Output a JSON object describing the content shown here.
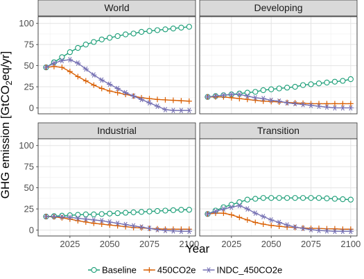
{
  "chart_data": {
    "type": "line",
    "xlabel": "Year",
    "ylabel": "GHG emission [GtCO2eq/yr]",
    "ylabel_main": "GHG emission [GtCO",
    "ylabel_sub": "2",
    "ylabel_tail": "eq/yr]",
    "xlim": [
      2005,
      2104
    ],
    "ylim": [
      -7,
      108
    ],
    "x_ticks": [
      2025,
      2050,
      2075,
      2100
    ],
    "y_ticks": [
      0,
      25,
      50,
      75,
      100
    ],
    "grid": true,
    "legend_position": "bottom",
    "x": [
      2010,
      2015,
      2020,
      2025,
      2030,
      2035,
      2040,
      2045,
      2050,
      2055,
      2060,
      2065,
      2070,
      2075,
      2080,
      2085,
      2090,
      2095,
      2100
    ],
    "series_styles": [
      {
        "name": "Baseline",
        "color": "#1b9e77",
        "marker": "circle"
      },
      {
        "name": "450CO2e",
        "color": "#d95f02",
        "marker": "plus"
      },
      {
        "name": "INDC_450CO2e",
        "color": "#7570b3",
        "marker": "asterisk"
      }
    ],
    "panels": [
      {
        "title": "World",
        "series": [
          {
            "name": "Baseline",
            "values": [
              48,
              54,
              60,
              66,
              71,
              75,
              78,
              81,
              83,
              85,
              87,
              88,
              90,
              91,
              92,
              93,
              94,
              95,
              96
            ]
          },
          {
            "name": "450CO2e",
            "values": [
              48,
              49,
              48,
              43,
              37,
              32,
              27,
              23,
              20,
              18,
              16,
              14,
              12,
              11,
              10,
              9.5,
              9,
              8.5,
              8
            ]
          },
          {
            "name": "INDC_450CO2e",
            "values": [
              48,
              53,
              56,
              57,
              53,
              46,
              39,
              33,
              28,
              23,
              18,
              14,
              10,
              6,
              2,
              -2,
              -3,
              -3,
              -3
            ]
          }
        ]
      },
      {
        "title": "Developing",
        "series": [
          {
            "name": "Baseline",
            "values": [
              13,
              14,
              15,
              16,
              17,
              18,
              19,
              21,
              22,
              23,
              24,
              25,
              27,
              28,
              29,
              30,
              31,
              32,
              34
            ]
          },
          {
            "name": "450CO2e",
            "values": [
              13,
              13,
              13,
              12,
              11,
              10,
              9,
              8,
              7.5,
              7,
              6.5,
              6,
              5.5,
              5,
              5,
              5,
              5,
              5,
              5
            ]
          },
          {
            "name": "INDC_450CO2e",
            "values": [
              13,
              14,
              15,
              16,
              16,
              14,
              12,
              11,
              9,
              8,
              6,
              5,
              4,
              3,
              2,
              1,
              0,
              0,
              0
            ]
          }
        ]
      },
      {
        "title": "Industrial",
        "series": [
          {
            "name": "Baseline",
            "values": [
              16,
              16.5,
              17,
              17.5,
              18,
              18.5,
              18.5,
              19,
              19.5,
              20,
              20.5,
              21,
              21.5,
              22,
              22.5,
              23,
              23.5,
              24,
              24
            ]
          },
          {
            "name": "450CO2e",
            "values": [
              16,
              15.5,
              14.5,
              13,
              11,
              9.5,
              8,
              7,
              6,
              5,
              4,
              3,
              2.5,
              2,
              1.5,
              1,
              1,
              1,
              1
            ]
          },
          {
            "name": "INDC_450CO2e",
            "values": [
              16,
              16,
              15.5,
              15,
              14,
              13,
              12,
              11,
              9.5,
              8,
              6.5,
              5,
              3.5,
              2,
              0.5,
              -0.5,
              -1,
              -1.5,
              -1.5
            ]
          }
        ]
      },
      {
        "title": "Transition",
        "series": [
          {
            "name": "Baseline",
            "values": [
              19,
              23,
              27,
              30,
              33,
              36,
              37,
              38,
              38,
              38,
              38,
              38,
              38,
              38,
              38,
              37.5,
              37,
              36.5,
              36
            ]
          },
          {
            "name": "450CO2e",
            "values": [
              19,
              20,
              20,
              18,
              15,
              12,
              9,
              7,
              5.5,
              4.5,
              3.5,
              3,
              2.5,
              2,
              2,
              1.5,
              1.5,
              1,
              1
            ]
          },
          {
            "name": "INDC_450CO2e",
            "values": [
              19,
              22,
              25,
              27,
              29,
              25,
              20,
              16,
              12,
              9,
              6,
              3.5,
              2,
              0.5,
              -0.5,
              -1,
              -1.5,
              -1.5,
              -1.5
            ]
          }
        ]
      }
    ]
  }
}
